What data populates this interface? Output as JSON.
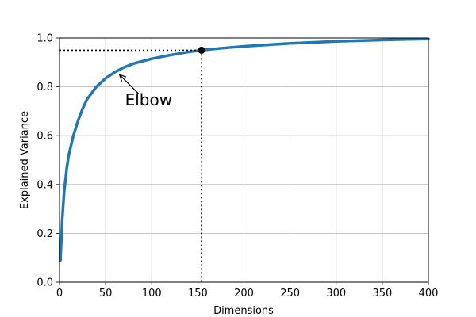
{
  "chart_data": {
    "type": "line",
    "xlabel": "Dimensions",
    "ylabel": "Explained Variance",
    "xlim": [
      0,
      400
    ],
    "ylim": [
      0,
      1.0
    ],
    "x_ticks": [
      0,
      50,
      100,
      150,
      200,
      250,
      300,
      350,
      400
    ],
    "y_ticks": [
      0.0,
      0.2,
      0.4,
      0.6,
      0.8,
      1.0
    ],
    "x_tick_labels": [
      "0",
      "50",
      "100",
      "150",
      "200",
      "250",
      "300",
      "350",
      "400"
    ],
    "y_tick_labels": [
      "0.0",
      "0.2",
      "0.4",
      "0.6",
      "0.8",
      "1.0"
    ],
    "grid": true,
    "series": [
      {
        "color": "#1f77b4",
        "x": [
          1,
          3,
          5,
          8,
          10,
          15,
          20,
          25,
          30,
          40,
          50,
          60,
          70,
          80,
          100,
          120,
          140,
          154,
          175,
          200,
          250,
          300,
          350,
          400
        ],
        "y": [
          0.09,
          0.26,
          0.37,
          0.47,
          0.52,
          0.6,
          0.66,
          0.71,
          0.75,
          0.8,
          0.835,
          0.86,
          0.88,
          0.895,
          0.915,
          0.93,
          0.943,
          0.95,
          0.958,
          0.966,
          0.978,
          0.986,
          0.992,
          0.996
        ]
      }
    ],
    "highlight_point": {
      "x": 154,
      "y": 0.95
    },
    "annotation": {
      "text": "Elbow",
      "x": 65,
      "y": 0.85
    }
  }
}
